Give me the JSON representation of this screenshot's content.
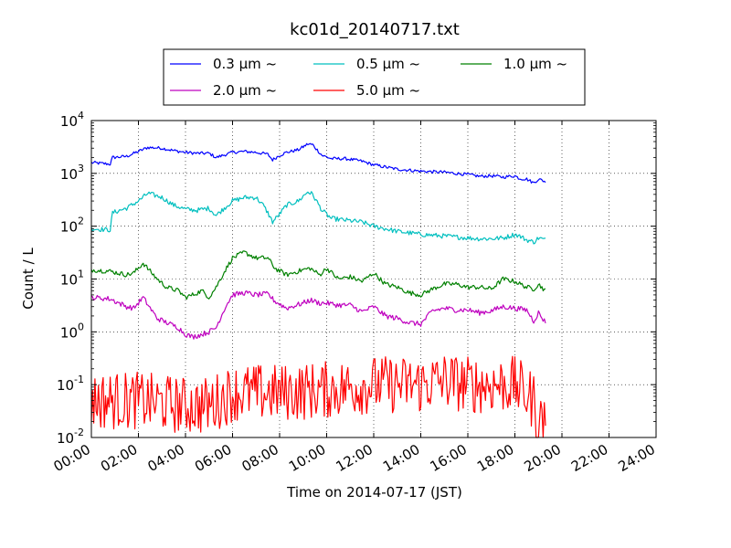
{
  "chart_data": {
    "type": "line",
    "title": "kc01d_20140717.txt",
    "xlabel": "Time on 2014-07-17 (JST)",
    "ylabel": "Count / L",
    "x_unit": "hour",
    "xlim": [
      0,
      24
    ],
    "ylim": [
      0.01,
      10000
    ],
    "y_scale": "log",
    "grid": true,
    "legend_position": "top",
    "x_ticks": [
      "00:00",
      "02:00",
      "04:00",
      "06:00",
      "08:00",
      "10:00",
      "12:00",
      "14:00",
      "16:00",
      "18:00",
      "20:00",
      "22:00",
      "24:00"
    ],
    "y_ticks": [
      {
        "value": 0.01,
        "base": "10",
        "exp": "-2"
      },
      {
        "value": 0.1,
        "base": "10",
        "exp": "-1"
      },
      {
        "value": 1,
        "base": "10",
        "exp": "0"
      },
      {
        "value": 10,
        "base": "10",
        "exp": "1"
      },
      {
        "value": 100,
        "base": "10",
        "exp": "2"
      },
      {
        "value": 1000,
        "base": "10",
        "exp": "3"
      },
      {
        "value": 10000,
        "base": "10",
        "exp": "4"
      }
    ],
    "series": [
      {
        "name": "0.3 μm ~",
        "color": "#0000ff",
        "noise": 0.03,
        "x": [
          0.0,
          0.8,
          0.9,
          1.5,
          2.0,
          2.4,
          3.0,
          3.5,
          4.0,
          4.5,
          5.0,
          5.3,
          6.0,
          6.5,
          7.0,
          7.5,
          7.7,
          8.0,
          8.3,
          8.8,
          9.2,
          9.4,
          9.8,
          10.2,
          10.8,
          11.5,
          12.0,
          13.0,
          14.0,
          15.0,
          16.0,
          16.5,
          17.0,
          17.5,
          18.0,
          18.2,
          18.5,
          18.8,
          19.0,
          19.3
        ],
        "y": [
          1600,
          1500,
          2000,
          2100,
          2600,
          3100,
          3000,
          2700,
          2500,
          2400,
          2400,
          2000,
          2500,
          2600,
          2500,
          2300,
          1800,
          2200,
          2500,
          2800,
          3600,
          3500,
          2200,
          1900,
          1900,
          1700,
          1450,
          1200,
          1100,
          1050,
          950,
          880,
          900,
          850,
          900,
          800,
          780,
          660,
          780,
          700
        ]
      },
      {
        "name": "0.5 μm ~",
        "color": "#00bfbf",
        "noise": 0.045,
        "x": [
          0.0,
          0.8,
          0.9,
          1.5,
          2.0,
          2.4,
          3.0,
          3.5,
          4.0,
          4.5,
          5.0,
          5.3,
          6.0,
          6.5,
          7.0,
          7.3,
          7.5,
          7.7,
          8.0,
          8.3,
          8.8,
          9.2,
          9.4,
          9.8,
          10.2,
          10.8,
          11.5,
          12.0,
          13.0,
          14.0,
          15.0,
          16.0,
          16.5,
          17.0,
          17.5,
          18.0,
          18.2,
          18.5,
          18.8,
          19.0,
          19.3
        ],
        "y": [
          90,
          85,
          180,
          220,
          300,
          420,
          350,
          250,
          210,
          200,
          220,
          160,
          300,
          350,
          350,
          250,
          180,
          120,
          170,
          250,
          300,
          450,
          400,
          200,
          140,
          130,
          120,
          100,
          80,
          70,
          65,
          60,
          58,
          58,
          60,
          70,
          65,
          55,
          50,
          60,
          55
        ]
      },
      {
        "name": "1.0 μm ~",
        "color": "#008000",
        "noise": 0.045,
        "x": [
          0.0,
          0.8,
          1.5,
          1.8,
          2.2,
          2.5,
          2.8,
          3.2,
          3.7,
          4.0,
          4.3,
          4.7,
          5.0,
          5.3,
          5.7,
          6.0,
          6.5,
          7.0,
          7.5,
          7.8,
          8.3,
          9.0,
          9.3,
          9.7,
          10.0,
          10.5,
          11.0,
          11.5,
          12.0,
          12.5,
          13.0,
          13.5,
          14.0,
          14.5,
          15.0,
          15.5,
          16.0,
          16.5,
          17.0,
          17.5,
          18.0,
          18.5,
          18.8,
          19.0,
          19.3
        ],
        "y": [
          15,
          14,
          12,
          13,
          20,
          14,
          10,
          7,
          6,
          4.5,
          5,
          6,
          4.5,
          7,
          15,
          25,
          32,
          25,
          25,
          16,
          12,
          15,
          16,
          12,
          16,
          10,
          11,
          9,
          13,
          8,
          7,
          5.5,
          5,
          6.5,
          8,
          8,
          7,
          7,
          6.5,
          10,
          9,
          7,
          6.5,
          8,
          6
        ]
      },
      {
        "name": "2.0 μm ~",
        "color": "#bf00bf",
        "noise": 0.05,
        "x": [
          0.0,
          0.8,
          1.5,
          1.8,
          2.2,
          2.5,
          2.8,
          3.2,
          3.7,
          4.0,
          4.3,
          4.7,
          5.0,
          5.3,
          5.7,
          6.0,
          6.5,
          7.0,
          7.5,
          7.8,
          8.3,
          9.0,
          9.3,
          9.7,
          10.0,
          10.5,
          11.0,
          11.5,
          12.0,
          12.5,
          13.0,
          13.5,
          14.0,
          14.5,
          15.0,
          15.5,
          16.0,
          16.5,
          17.0,
          17.5,
          18.0,
          18.5,
          18.8,
          19.0,
          19.3
        ],
        "y": [
          4.5,
          4.2,
          3,
          2.8,
          4.5,
          2.8,
          1.8,
          1.5,
          1.2,
          0.9,
          0.8,
          0.9,
          1.0,
          1.2,
          3,
          5,
          5.5,
          5,
          5.2,
          3.8,
          2.8,
          3.5,
          4,
          3.5,
          3.5,
          3.2,
          3.2,
          2.4,
          3,
          2.0,
          1.8,
          1.5,
          1.4,
          2.5,
          2.8,
          2.6,
          2.6,
          2.3,
          2.5,
          3,
          2.8,
          2.6,
          1.6,
          2.3,
          1.5
        ]
      },
      {
        "name": "5.0 μm ~",
        "color": "#ff0000",
        "noise": 0.55,
        "x": [
          0.0,
          2.0,
          4.0,
          5.0,
          6.0,
          8.0,
          10.0,
          12.0,
          14.0,
          15.0,
          16.0,
          17.0,
          18.0,
          18.8,
          18.9,
          19.0,
          19.1,
          19.3
        ],
        "y": [
          0.05,
          0.05,
          0.04,
          0.04,
          0.07,
          0.07,
          0.08,
          0.1,
          0.1,
          0.12,
          0.1,
          0.1,
          0.1,
          0.05,
          0.015,
          0.03,
          0.02,
          0.025
        ]
      }
    ]
  }
}
